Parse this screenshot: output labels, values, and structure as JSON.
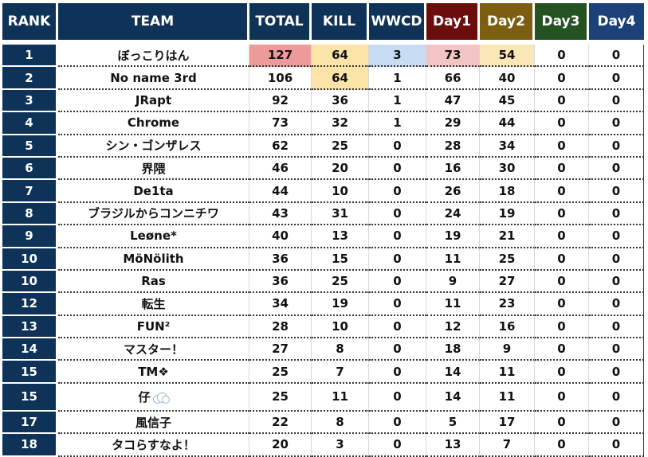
{
  "headers": {
    "rank": "RANK",
    "team": "TEAM",
    "total": "TOTAL",
    "kill": "KILL",
    "wwcd": "WWCD",
    "day1": "Day1",
    "day2": "Day2",
    "day3": "Day3",
    "day4": "Day4"
  },
  "colors": {
    "header_navy": "#0f3358",
    "day1_header": "#6c0d0d",
    "day2_header": "#7d5e10",
    "day3_header": "#245221",
    "day4_header": "#1c4078",
    "highlight_total": "#ef9a9a",
    "highlight_kill": "#fce4a8",
    "highlight_wwcd": "#c7dcf3",
    "highlight_day1": "#f2c4c4",
    "highlight_day2": "#fbe6b8"
  },
  "rows": [
    {
      "rank": "1",
      "team": "ぼっこりはん",
      "total": "127",
      "kill": "64",
      "wwcd": "3",
      "day1": "73",
      "day2": "54",
      "day3": "0",
      "day4": "0"
    },
    {
      "rank": "2",
      "team": "No name 3rd",
      "total": "106",
      "kill": "64",
      "wwcd": "1",
      "day1": "66",
      "day2": "40",
      "day3": "0",
      "day4": "0"
    },
    {
      "rank": "3",
      "team": "JRapt",
      "total": "92",
      "kill": "36",
      "wwcd": "1",
      "day1": "47",
      "day2": "45",
      "day3": "0",
      "day4": "0"
    },
    {
      "rank": "4",
      "team": "Chrome",
      "total": "73",
      "kill": "32",
      "wwcd": "1",
      "day1": "29",
      "day2": "44",
      "day3": "0",
      "day4": "0"
    },
    {
      "rank": "5",
      "team": "シン・ゴンザレス",
      "total": "62",
      "kill": "25",
      "wwcd": "0",
      "day1": "28",
      "day2": "34",
      "day3": "0",
      "day4": "0"
    },
    {
      "rank": "6",
      "team": "界隈",
      "total": "46",
      "kill": "20",
      "wwcd": "0",
      "day1": "16",
      "day2": "30",
      "day3": "0",
      "day4": "0"
    },
    {
      "rank": "7",
      "team": "De1ta",
      "total": "44",
      "kill": "10",
      "wwcd": "0",
      "day1": "26",
      "day2": "18",
      "day3": "0",
      "day4": "0"
    },
    {
      "rank": "8",
      "team": "ブラジルからコンニチワ",
      "total": "43",
      "kill": "31",
      "wwcd": "0",
      "day1": "24",
      "day2": "19",
      "day3": "0",
      "day4": "0"
    },
    {
      "rank": "9",
      "team": "Leøne*",
      "total": "40",
      "kill": "13",
      "wwcd": "0",
      "day1": "19",
      "day2": "21",
      "day3": "0",
      "day4": "0"
    },
    {
      "rank": "10",
      "team": "MöNölith",
      "total": "36",
      "kill": "15",
      "wwcd": "0",
      "day1": "11",
      "day2": "25",
      "day3": "0",
      "day4": "0"
    },
    {
      "rank": "10",
      "team": "Ras",
      "total": "36",
      "kill": "25",
      "wwcd": "0",
      "day1": "9",
      "day2": "27",
      "day3": "0",
      "day4": "0"
    },
    {
      "rank": "12",
      "team": "転生",
      "total": "34",
      "kill": "19",
      "wwcd": "0",
      "day1": "11",
      "day2": "23",
      "day3": "0",
      "day4": "0"
    },
    {
      "rank": "13",
      "team": "FUN²",
      "total": "28",
      "kill": "10",
      "wwcd": "0",
      "day1": "12",
      "day2": "16",
      "day3": "0",
      "day4": "0"
    },
    {
      "rank": "14",
      "team": "マスター！",
      "total": "27",
      "kill": "8",
      "wwcd": "0",
      "day1": "18",
      "day2": "9",
      "day3": "0",
      "day4": "0"
    },
    {
      "rank": "15",
      "team": "TM❖",
      "total": "25",
      "kill": "7",
      "wwcd": "0",
      "day1": "14",
      "day2": "11",
      "day3": "0",
      "day4": "0"
    },
    {
      "rank": "15",
      "team": "仔",
      "total": "25",
      "kill": "11",
      "wwcd": "0",
      "day1": "14",
      "day2": "11",
      "day3": "0",
      "day4": "0",
      "icon": "cloud-icon"
    },
    {
      "rank": "17",
      "team": "風信子",
      "total": "22",
      "kill": "8",
      "wwcd": "0",
      "day1": "5",
      "day2": "17",
      "day3": "0",
      "day4": "0"
    },
    {
      "rank": "18",
      "team": "タコらすなよ！",
      "total": "20",
      "kill": "3",
      "wwcd": "0",
      "day1": "13",
      "day2": "7",
      "day3": "0",
      "day4": "0"
    }
  ]
}
